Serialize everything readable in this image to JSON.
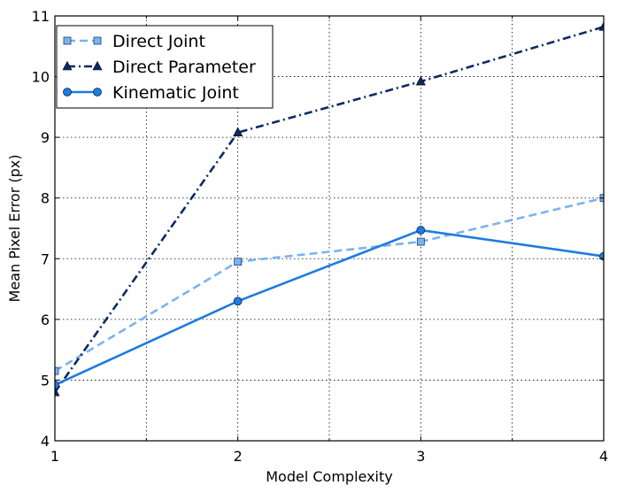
{
  "chart_data": {
    "type": "line",
    "title": "",
    "xlabel": "Model Complexity",
    "ylabel": "Mean Pixel Error (px)",
    "xlim": [
      1,
      4
    ],
    "ylim": [
      4,
      11
    ],
    "xticks": [
      1,
      2,
      3,
      4
    ],
    "yticks": [
      4,
      5,
      6,
      7,
      8,
      9,
      10,
      11
    ],
    "x_minor_grid": [
      1.5,
      2.5,
      3.5
    ],
    "grid": true,
    "legend_position": "top-left",
    "x": [
      1,
      2,
      3,
      4
    ],
    "series": [
      {
        "name": "Direct Joint",
        "values": [
          5.15,
          6.95,
          7.28,
          8.0
        ],
        "color": "#7ab3ef",
        "line_style": "dashed",
        "marker": "square"
      },
      {
        "name": "Direct Parameter",
        "values": [
          4.8,
          9.08,
          9.92,
          10.82
        ],
        "color": "#0b2a66",
        "line_style": "dash-dot",
        "marker": "triangle"
      },
      {
        "name": "Kinematic Joint",
        "values": [
          4.92,
          6.3,
          7.47,
          7.04
        ],
        "color": "#1e7be0",
        "line_style": "solid",
        "marker": "circle"
      }
    ]
  }
}
